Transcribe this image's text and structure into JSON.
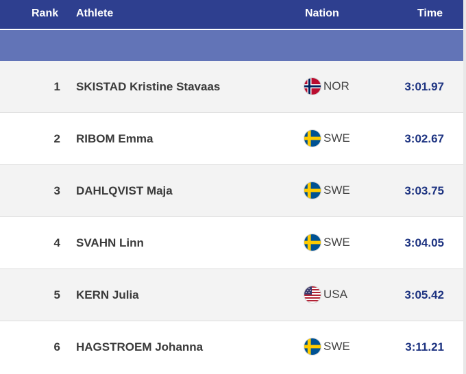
{
  "header": {
    "rank": "Rank",
    "athlete": "Athlete",
    "nation": "Nation",
    "time": "Time"
  },
  "colors": {
    "header_bg": "#2e3f8f",
    "subheader_bg": "#6274b7",
    "time_text": "#1c3280",
    "row_alt": "#f3f3f3"
  },
  "rows": [
    {
      "rank": "1",
      "athlete": "SKISTAD Kristine Stavaas",
      "nation": "NOR",
      "flag_icon": "norway-flag-icon",
      "time": "3:01.97"
    },
    {
      "rank": "2",
      "athlete": "RIBOM Emma",
      "nation": "SWE",
      "flag_icon": "sweden-flag-icon",
      "time": "3:02.67"
    },
    {
      "rank": "3",
      "athlete": "DAHLQVIST Maja",
      "nation": "SWE",
      "flag_icon": "sweden-flag-icon",
      "time": "3:03.75"
    },
    {
      "rank": "4",
      "athlete": "SVAHN Linn",
      "nation": "SWE",
      "flag_icon": "sweden-flag-icon",
      "time": "3:04.05"
    },
    {
      "rank": "5",
      "athlete": "KERN Julia",
      "nation": "USA",
      "flag_icon": "usa-flag-icon",
      "time": "3:05.42"
    },
    {
      "rank": "6",
      "athlete": "HAGSTROEM Johanna",
      "nation": "SWE",
      "flag_icon": "sweden-flag-icon",
      "time": "3:11.21"
    }
  ]
}
